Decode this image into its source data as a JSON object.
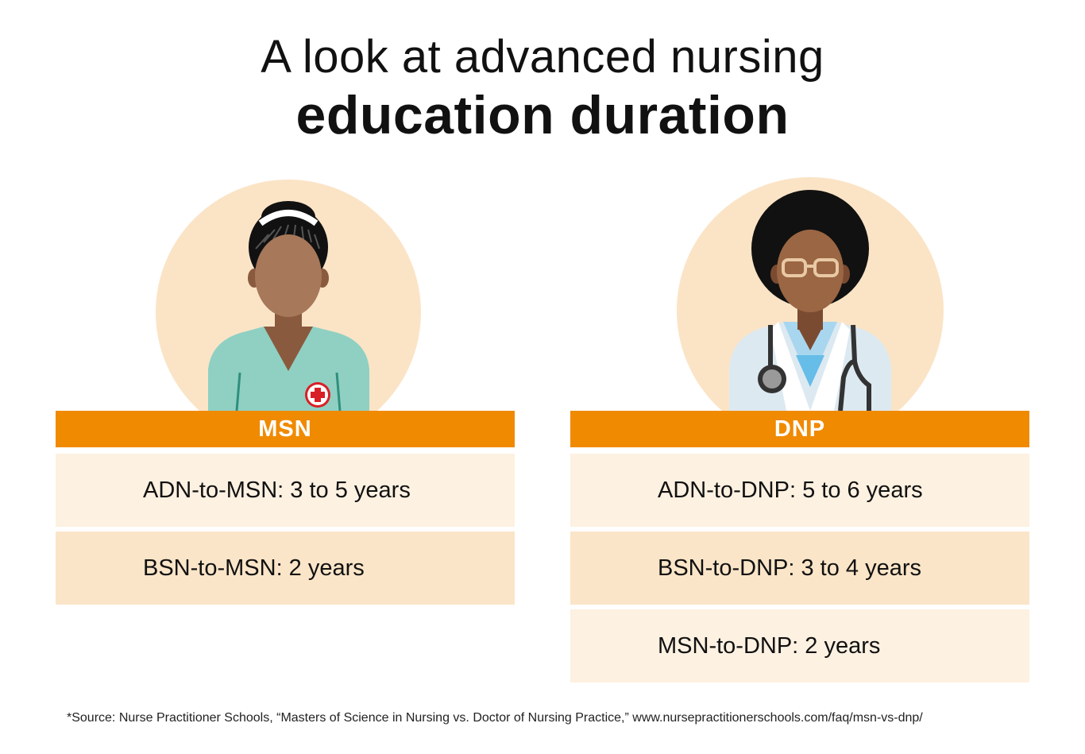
{
  "title": {
    "line1": "A look at advanced nursing",
    "line2": "education duration"
  },
  "colors": {
    "header_orange": "#f08a00",
    "row_light": "#fdf1e1",
    "row_dark": "#fbe5c8",
    "circle_bg": "#fbe4c6"
  },
  "columns": [
    {
      "header": "MSN",
      "icon": "nurse-icon",
      "rows": [
        "ADN-to-MSN: 3 to 5 years",
        "BSN-to-MSN: 2 years"
      ]
    },
    {
      "header": "DNP",
      "icon": "doctor-icon",
      "rows": [
        "ADN-to-DNP: 5 to 6 years",
        "BSN-to-DNP: 3 to 4 years",
        "MSN-to-DNP: 2 years"
      ]
    }
  ],
  "footnote": "*Source: Nurse Practitioner Schools, “Masters of Science in Nursing vs. Doctor of Nursing Practice,” www.nursepractitionerschools.com/faq/msn-vs-dnp/"
}
